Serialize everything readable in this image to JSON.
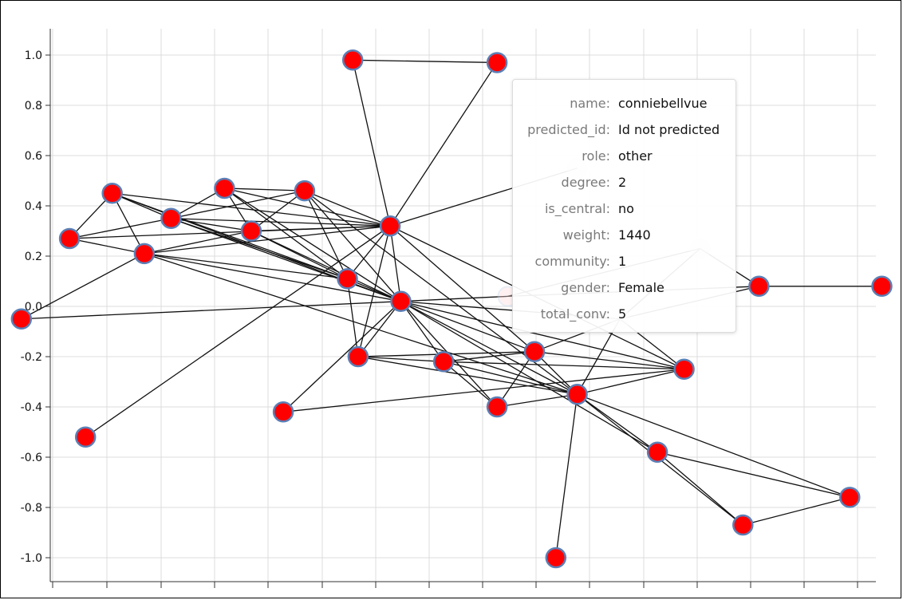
{
  "chart_data": {
    "type": "scatter",
    "ylim": [
      -1.1,
      1.1
    ],
    "xlim": [
      -1.0,
      1.0
    ],
    "y_ticks": [
      "1.0",
      "0.8",
      "0.6",
      "0.4",
      "0.2",
      "0.0",
      "-0.2",
      "-0.4",
      "-0.6",
      "-0.8",
      "-1.0"
    ],
    "grid": true,
    "node_color": "#ff0000",
    "node_stroke": "#5b7fb6",
    "edge_color": "#111111",
    "nodes": [
      {
        "id": "A",
        "x": -0.24,
        "y": 0.98
      },
      {
        "id": "B",
        "x": 0.03,
        "y": 0.97
      },
      {
        "id": "C",
        "x": -0.86,
        "y": -0.05
      },
      {
        "id": "D",
        "x": -0.77,
        "y": 0.27
      },
      {
        "id": "E",
        "x": -0.69,
        "y": 0.45
      },
      {
        "id": "F",
        "x": -0.58,
        "y": 0.35
      },
      {
        "id": "G",
        "x": -0.48,
        "y": 0.47
      },
      {
        "id": "H",
        "x": -0.43,
        "y": 0.3
      },
      {
        "id": "I",
        "x": -0.33,
        "y": 0.46
      },
      {
        "id": "J",
        "x": -0.63,
        "y": 0.21
      },
      {
        "id": "K",
        "x": -0.17,
        "y": 0.32
      },
      {
        "id": "L",
        "x": -0.25,
        "y": 0.11
      },
      {
        "id": "M",
        "x": -0.15,
        "y": 0.02
      },
      {
        "id": "N",
        "x": -0.23,
        "y": -0.2
      },
      {
        "id": "O",
        "x": -0.07,
        "y": -0.22
      },
      {
        "id": "P",
        "x": 0.1,
        "y": -0.18
      },
      {
        "id": "Q",
        "x": 0.18,
        "y": -0.35
      },
      {
        "id": "R",
        "x": 0.03,
        "y": -0.4
      },
      {
        "id": "S",
        "x": -0.37,
        "y": -0.42
      },
      {
        "id": "T",
        "x": -0.74,
        "y": -0.52
      },
      {
        "id": "U",
        "x": 0.38,
        "y": -0.25
      },
      {
        "id": "V",
        "x": 0.33,
        "y": -0.58
      },
      {
        "id": "W",
        "x": 0.49,
        "y": -0.87
      },
      {
        "id": "X",
        "x": 0.69,
        "y": -0.76
      },
      {
        "id": "Y",
        "x": 0.14,
        "y": -1.0
      },
      {
        "id": "Z",
        "x": 0.52,
        "y": 0.08
      },
      {
        "id": "AA",
        "x": 0.75,
        "y": 0.08
      },
      {
        "id": "h1",
        "x": 0.18,
        "y": 0.55,
        "hidden": true
      },
      {
        "id": "h2",
        "x": 0.41,
        "y": 0.23,
        "hidden": true
      },
      {
        "id": "h3",
        "x": 0.05,
        "y": 0.04,
        "hidden": true
      },
      {
        "id": "h4",
        "x": 0.26,
        "y": -0.05,
        "hidden": true
      }
    ],
    "edges": [
      [
        "A",
        "B"
      ],
      [
        "A",
        "K"
      ],
      [
        "B",
        "K"
      ],
      [
        "C",
        "M"
      ],
      [
        "C",
        "J"
      ],
      [
        "D",
        "E"
      ],
      [
        "D",
        "J"
      ],
      [
        "D",
        "F"
      ],
      [
        "D",
        "K"
      ],
      [
        "E",
        "J"
      ],
      [
        "E",
        "F"
      ],
      [
        "E",
        "M"
      ],
      [
        "E",
        "K"
      ],
      [
        "E",
        "L"
      ],
      [
        "F",
        "G"
      ],
      [
        "F",
        "I"
      ],
      [
        "F",
        "H"
      ],
      [
        "F",
        "M"
      ],
      [
        "F",
        "K"
      ],
      [
        "F",
        "L"
      ],
      [
        "G",
        "I"
      ],
      [
        "G",
        "H"
      ],
      [
        "G",
        "K"
      ],
      [
        "G",
        "M"
      ],
      [
        "G",
        "L"
      ],
      [
        "H",
        "I"
      ],
      [
        "H",
        "K"
      ],
      [
        "H",
        "L"
      ],
      [
        "H",
        "M"
      ],
      [
        "I",
        "K"
      ],
      [
        "I",
        "M"
      ],
      [
        "I",
        "L"
      ],
      [
        "I",
        "Q"
      ],
      [
        "J",
        "M"
      ],
      [
        "J",
        "K"
      ],
      [
        "J",
        "L"
      ],
      [
        "J",
        "H"
      ],
      [
        "J",
        "Q"
      ],
      [
        "K",
        "L"
      ],
      [
        "K",
        "M"
      ],
      [
        "K",
        "N"
      ],
      [
        "K",
        "P"
      ],
      [
        "K",
        "U"
      ],
      [
        "K",
        "h1"
      ],
      [
        "L",
        "N"
      ],
      [
        "L",
        "M"
      ],
      [
        "M",
        "N"
      ],
      [
        "M",
        "O"
      ],
      [
        "M",
        "P"
      ],
      [
        "M",
        "Q"
      ],
      [
        "M",
        "R"
      ],
      [
        "M",
        "U"
      ],
      [
        "M",
        "V"
      ],
      [
        "N",
        "O"
      ],
      [
        "N",
        "P"
      ],
      [
        "N",
        "Q"
      ],
      [
        "O",
        "P"
      ],
      [
        "O",
        "Q"
      ],
      [
        "O",
        "R"
      ],
      [
        "O",
        "U"
      ],
      [
        "P",
        "Q"
      ],
      [
        "P",
        "R"
      ],
      [
        "P",
        "U"
      ],
      [
        "Q",
        "U"
      ],
      [
        "Q",
        "V"
      ],
      [
        "Q",
        "W"
      ],
      [
        "Q",
        "X"
      ],
      [
        "Q",
        "Y"
      ],
      [
        "Q",
        "R"
      ],
      [
        "S",
        "M"
      ],
      [
        "S",
        "U"
      ],
      [
        "T",
        "K"
      ],
      [
        "V",
        "W"
      ],
      [
        "V",
        "X"
      ],
      [
        "W",
        "X"
      ],
      [
        "Z",
        "AA"
      ],
      [
        "Z",
        "h2"
      ],
      [
        "M",
        "h3"
      ],
      [
        "M",
        "h4"
      ],
      [
        "P",
        "h4"
      ],
      [
        "Q",
        "h4"
      ],
      [
        "U",
        "h4"
      ],
      [
        "h2",
        "h4"
      ],
      [
        "h4",
        "Z"
      ],
      [
        "h3",
        "Z"
      ],
      [
        "h2",
        "h3"
      ]
    ]
  },
  "tooltip": {
    "rows": [
      {
        "key": "name:",
        "value": "conniebellvue"
      },
      {
        "key": "predicted_id:",
        "value": "Id not predicted"
      },
      {
        "key": "role:",
        "value": "other"
      },
      {
        "key": "degree:",
        "value": "2"
      },
      {
        "key": "is_central:",
        "value": "no"
      },
      {
        "key": "weight:",
        "value": "1440"
      },
      {
        "key": "community:",
        "value": "1"
      },
      {
        "key": "gender:",
        "value": "Female"
      },
      {
        "key": "total_conv:",
        "value": "5"
      }
    ]
  }
}
